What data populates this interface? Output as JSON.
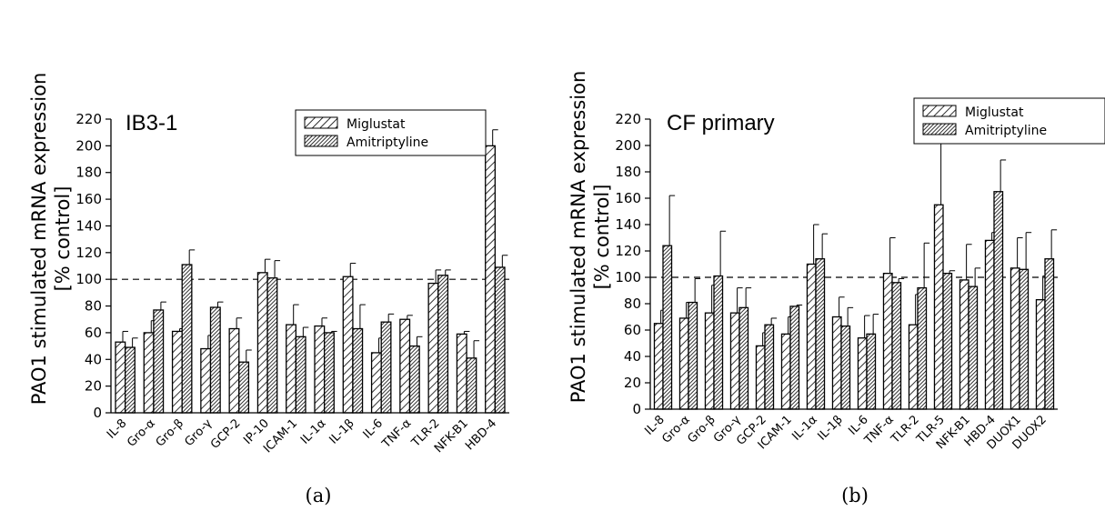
{
  "chart_data": [
    {
      "type": "bar",
      "title": "IB3-1",
      "panel_label": "(a)",
      "ylabel": [
        "PAO1 stimulated mRNA expression",
        "[% control]"
      ],
      "ylim": [
        0,
        220
      ],
      "yticks": [
        0,
        20,
        40,
        60,
        80,
        100,
        120,
        140,
        160,
        180,
        200,
        220
      ],
      "reference_line": 100,
      "legend": "top-right",
      "categories": [
        "IL-8",
        "Gro-α",
        "Gro-β",
        "Gro-γ",
        "GCP-2",
        "IP-10",
        "ICAM-1",
        "IL-1α",
        "IL-1β",
        "IL-6",
        "TNF-α",
        "TLR-2",
        "NFK-B1",
        "HBD-4"
      ],
      "series": [
        {
          "name": "Miglustat",
          "pattern": "light-hatch",
          "values": [
            53,
            60,
            61,
            48,
            63,
            105,
            66,
            65,
            102,
            45,
            70,
            97,
            59,
            200
          ],
          "errors": [
            8,
            9,
            2,
            10,
            8,
            10,
            15,
            6,
            10,
            11,
            3,
            10,
            2,
            12
          ]
        },
        {
          "name": "Amitriptyline",
          "pattern": "dense-hatch",
          "values": [
            49,
            77,
            111,
            79,
            38,
            101,
            57,
            60,
            63,
            68,
            50,
            103,
            41,
            109
          ],
          "errors": [
            7,
            6,
            11,
            4,
            9,
            13,
            7,
            1,
            18,
            6,
            7,
            4,
            13,
            9
          ]
        }
      ]
    },
    {
      "type": "bar",
      "title": "CF primary",
      "panel_label": "(b)",
      "ylabel": [
        "PAO1 stimulated mRNA expression",
        "[% control]"
      ],
      "ylim": [
        0,
        220
      ],
      "yticks": [
        0,
        20,
        40,
        60,
        80,
        100,
        120,
        140,
        160,
        180,
        200,
        220
      ],
      "reference_line": 100,
      "legend": "top-right",
      "categories": [
        "IL-8",
        "Gro-α",
        "Gro-β",
        "Gro-γ",
        "GCP-2",
        "ICAM-1",
        "IL-1α",
        "IL-1β",
        "IL-6",
        "TNF-α",
        "TLR-2",
        "TLR-5",
        "NFK-B1",
        "HBD-4",
        "DUOX1",
        "DUOX2"
      ],
      "series": [
        {
          "name": "Miglustat",
          "pattern": "light-hatch",
          "values": [
            65,
            69,
            73,
            73,
            48,
            57,
            110,
            70,
            54,
            103,
            64,
            155,
            98,
            128,
            107,
            83
          ],
          "errors": [
            10,
            12,
            21,
            19,
            10,
            13,
            30,
            15,
            17,
            27,
            23,
            48,
            27,
            6,
            23,
            18
          ]
        },
        {
          "name": "Amitriptyline",
          "pattern": "dense-hatch",
          "values": [
            124,
            81,
            101,
            77,
            64,
            78,
            114,
            63,
            57,
            96,
            92,
            103,
            93,
            165,
            106,
            114
          ],
          "errors": [
            38,
            18,
            34,
            15,
            5,
            1,
            19,
            14,
            15,
            3,
            34,
            2,
            14,
            24,
            28,
            22
          ]
        }
      ]
    }
  ]
}
